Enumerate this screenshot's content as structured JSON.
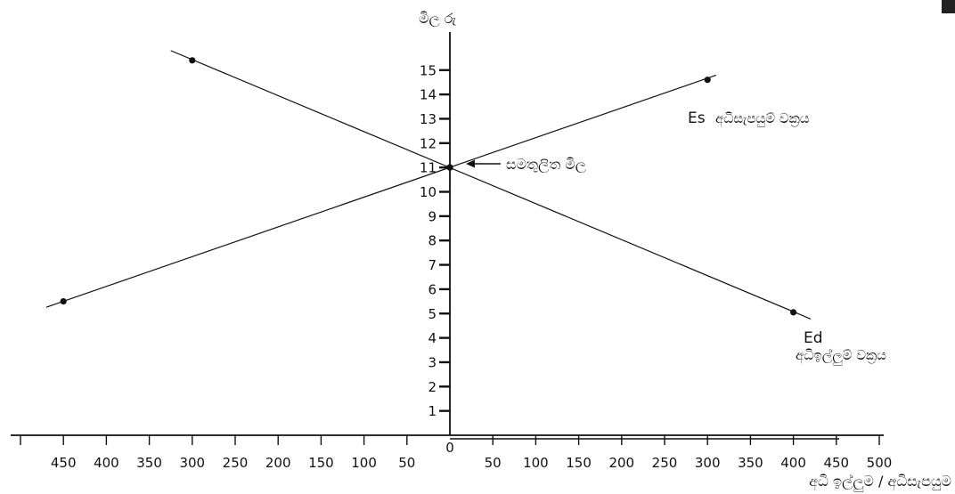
{
  "chart_data": {
    "type": "line",
    "title": "",
    "ylabel": "මිල රු",
    "xlabel": "අධි ඉල්ලුම / අධිසැපයුම",
    "xlim": [
      -500,
      500
    ],
    "ylim": [
      0,
      15
    ],
    "x_ticks_left": [
      "450",
      "400",
      "350",
      "300",
      "250",
      "200",
      "150",
      "100",
      "50"
    ],
    "x_tick_zero": "0",
    "x_ticks_right": [
      "50",
      "100",
      "150",
      "200",
      "250",
      "300",
      "350",
      "400",
      "450",
      "500"
    ],
    "y_ticks": [
      "1",
      "2",
      "3",
      "4",
      "5",
      "6",
      "7",
      "8",
      "9",
      "10",
      "11",
      "12",
      "13",
      "14",
      "15"
    ],
    "grid": false,
    "series": [
      {
        "name": "Es අධිසැපයුම් වක්‍රය",
        "label_prefix": "Es",
        "label_text": "අධිසැපයුම් වක්‍රය",
        "points": [
          [
            -450,
            5.5
          ],
          [
            0,
            11
          ],
          [
            300,
            14.6
          ]
        ],
        "line": [
          [
            -470,
            5.26
          ],
          [
            310,
            14.79
          ]
        ]
      },
      {
        "name": "Ed අධිඉල්ලුම් වක්‍රය",
        "label_prefix": "Ed",
        "label_text": "අධිඉල්ලුම් වක්‍රය",
        "points": [
          [
            -300,
            15.4
          ],
          [
            0,
            11
          ],
          [
            400,
            5.05
          ]
        ],
        "line": [
          [
            -325,
            15.8
          ],
          [
            420,
            4.78
          ]
        ]
      }
    ],
    "annotations": [
      {
        "text": "සමතුලිත මිල",
        "x": 0,
        "y": 11
      }
    ]
  }
}
